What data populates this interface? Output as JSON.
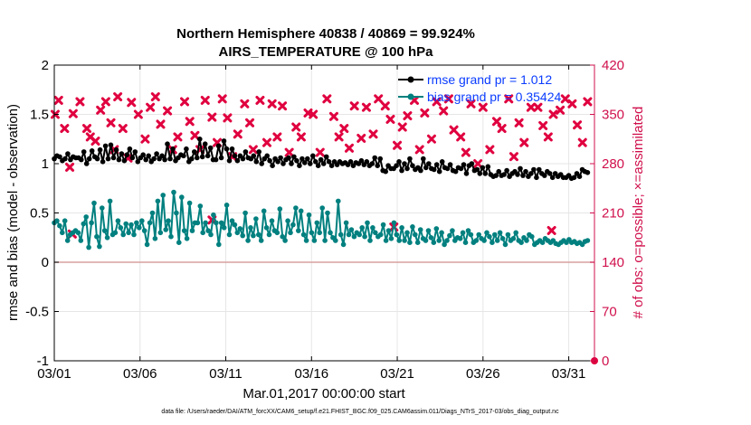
{
  "chart_data": {
    "type": "line",
    "title_line1": "Northern Hemisphere 40838 / 40869 = 99.924%",
    "title_line2": "AIRS_TEMPERATURE @ 100 hPa",
    "xlabel": "Mar.01,2017 00:00:00 start",
    "ylabel": "rmse and bias (model - observation)",
    "ylabel_right": "# of obs: o=possible; ×=assimilated",
    "xlim": [
      0,
      31.5
    ],
    "ylim": [
      -1,
      2
    ],
    "ylim_right": [
      0,
      420
    ],
    "x_ticks": [
      0,
      5,
      10,
      15,
      20,
      25,
      30
    ],
    "x_tick_labels": [
      "03/01",
      "03/06",
      "03/11",
      "03/16",
      "03/21",
      "03/26",
      "03/31"
    ],
    "y_ticks": [
      -1,
      -0.5,
      0,
      0.5,
      1,
      1.5,
      2
    ],
    "y_tick_labels": [
      "-1",
      "-0.5",
      "0",
      "0.5",
      "1",
      "1.5",
      "2"
    ],
    "y_right_ticks": [
      0,
      70,
      140,
      210,
      280,
      350,
      420
    ],
    "y_right_tick_labels": [
      "0",
      "70",
      "140",
      "210",
      "280",
      "350",
      "420"
    ],
    "legend_position": "top-right",
    "footer": "data file: /Users/raeder/DAI/ATM_forcXX/CAM6_setup/f.e21.FHIST_BGC.f09_025.CAM6assim.011/Diags_NTrS_2017-03/obs_diag_output.nc",
    "series": [
      {
        "name": "rmse grand pr = 1.012",
        "color": "#000000",
        "values": [
          1.05,
          1.08,
          1.07,
          1.03,
          1.05,
          1.1,
          1.04,
          1.07,
          1.06,
          1.06,
          1.04,
          1.12,
          1.0,
          1.05,
          1.13,
          1.07,
          1.05,
          1.14,
          1.02,
          1.18,
          1.05,
          1.19,
          1.06,
          1.14,
          1.04,
          1.1,
          1.03,
          1.09,
          1.15,
          1.06,
          1.12,
          1.02,
          1.06,
          1.09,
          1.04,
          1.08,
          1.02,
          1.05,
          1.1,
          1.05,
          1.08,
          1.04,
          1.2,
          1.05,
          1.15,
          1.03,
          1.06,
          1.09,
          1.08,
          1.15,
          1.02,
          1.05,
          1.12,
          1.06,
          1.25,
          1.07,
          1.2,
          1.08,
          1.16,
          1.04,
          1.04,
          1.18,
          1.06,
          1.23,
          1.15,
          1.03,
          1.15,
          1.08,
          1.03,
          1.08,
          1.05,
          1.12,
          1.06,
          1.05,
          1.08,
          1.02,
          1.12,
          1.0,
          1.05,
          1.08,
          1.03,
          0.98,
          1.05,
          1.02,
          1.06,
          1.0,
          1.04,
          1.06,
          1.0,
          1.07,
          1.03,
          0.98,
          1.05,
          1.01,
          1.05,
          1.0,
          1.08,
          1.02,
          0.98,
          1.04,
          1.0,
          1.07,
          1.02,
          0.98,
          1.02,
          0.99,
          1.02,
          1.0,
          1.01,
          0.99,
          1.02,
          0.98,
          1.01,
          1.0,
          1.03,
          0.99,
          1.02,
          0.98,
          1.0,
          1.06,
          0.98,
          1.05,
          0.93,
          0.92,
          0.98,
          0.95,
          0.95,
          0.98,
          1.02,
          0.93,
          1.0,
          0.95,
          1.05,
          0.98,
          0.94,
          0.96,
          0.93,
          1.05,
          0.96,
          1.0,
          0.95,
          0.94,
          0.99,
          0.92,
          1.02,
          0.96,
          0.95,
          0.99,
          0.93,
          0.92,
          0.96,
          0.95,
          0.99,
          0.9,
          0.98,
          1.0,
          0.93,
          0.94,
          0.9,
          0.96,
          0.9,
          0.97,
          0.89,
          0.87,
          0.88,
          0.92,
          0.88,
          0.89,
          0.93,
          0.87,
          0.9,
          0.92,
          0.89,
          0.95,
          0.88,
          0.92,
          0.87,
          0.9,
          0.94,
          0.86,
          0.94,
          0.9,
          0.88,
          0.92,
          0.9,
          0.86,
          0.9,
          0.87,
          0.89,
          0.86,
          0.86,
          0.88,
          0.85,
          0.86,
          0.9,
          0.87,
          0.94,
          0.92,
          0.91
        ]
      },
      {
        "name": "bias grand pr = 0.35424",
        "color": "#00807f",
        "values": [
          0.4,
          0.42,
          0.37,
          0.3,
          0.42,
          0.22,
          0.28,
          0.3,
          0.32,
          0.3,
          0.22,
          0.39,
          0.46,
          0.15,
          0.4,
          0.6,
          0.26,
          0.16,
          0.55,
          0.32,
          0.25,
          0.62,
          0.28,
          0.3,
          0.42,
          0.35,
          0.28,
          0.39,
          0.3,
          0.38,
          0.28,
          0.4,
          0.35,
          0.42,
          0.32,
          0.18,
          0.4,
          0.5,
          0.24,
          0.62,
          0.3,
          0.68,
          0.33,
          0.42,
          0.26,
          0.71,
          0.5,
          0.2,
          0.66,
          0.32,
          0.24,
          0.6,
          0.32,
          0.4,
          0.4,
          0.57,
          0.3,
          0.4,
          0.32,
          0.28,
          0.48,
          0.4,
          0.18,
          0.4,
          0.35,
          0.58,
          0.28,
          0.42,
          0.38,
          0.3,
          0.34,
          0.27,
          0.5,
          0.22,
          0.35,
          0.27,
          0.44,
          0.28,
          0.22,
          0.52,
          0.35,
          0.28,
          0.42,
          0.32,
          0.3,
          0.54,
          0.26,
          0.22,
          0.42,
          0.3,
          0.38,
          0.55,
          0.32,
          0.52,
          0.28,
          0.22,
          0.48,
          0.3,
          0.22,
          0.4,
          0.3,
          0.55,
          0.22,
          0.5,
          0.3,
          0.25,
          0.22,
          0.62,
          0.28,
          0.18,
          0.4,
          0.28,
          0.33,
          0.26,
          0.3,
          0.28,
          0.35,
          0.26,
          0.4,
          0.22,
          0.35,
          0.3,
          0.26,
          0.28,
          0.38,
          0.22,
          0.32,
          0.24,
          0.4,
          0.28,
          0.22,
          0.35,
          0.22,
          0.3,
          0.2,
          0.36,
          0.28,
          0.2,
          0.33,
          0.24,
          0.22,
          0.32,
          0.25,
          0.2,
          0.34,
          0.22,
          0.3,
          0.18,
          0.22,
          0.27,
          0.32,
          0.22,
          0.25,
          0.24,
          0.3,
          0.2,
          0.32,
          0.28,
          0.2,
          0.22,
          0.28,
          0.24,
          0.22,
          0.3,
          0.26,
          0.2,
          0.28,
          0.22,
          0.3,
          0.24,
          0.18,
          0.28,
          0.22,
          0.24,
          0.3,
          0.22,
          0.2,
          0.25,
          0.22,
          0.28,
          0.26,
          0.18,
          0.2,
          0.22,
          0.2,
          0.24,
          0.22,
          0.2,
          0.22,
          0.19,
          0.18,
          0.2,
          0.22,
          0.2,
          0.23,
          0.2,
          0.21,
          0.19,
          0.2,
          0.18,
          0.21,
          0.22
        ]
      }
    ],
    "obs_possible_color": "#e0003f",
    "obs_assimilated": [
      {
        "x": 0.05,
        "y": 350
      },
      {
        "x": 0.25,
        "y": 370
      },
      {
        "x": 0.6,
        "y": 330
      },
      {
        "x": 0.9,
        "y": 275
      },
      {
        "x": 1.1,
        "y": 351
      },
      {
        "x": 1.5,
        "y": 368
      },
      {
        "x": 1.9,
        "y": 330
      },
      {
        "x": 2.1,
        "y": 318
      },
      {
        "x": 2.4,
        "y": 312
      },
      {
        "x": 2.7,
        "y": 356
      },
      {
        "x": 3.0,
        "y": 368
      },
      {
        "x": 3.3,
        "y": 338
      },
      {
        "x": 3.5,
        "y": 300
      },
      {
        "x": 3.7,
        "y": 375
      },
      {
        "x": 4.0,
        "y": 330
      },
      {
        "x": 4.3,
        "y": 288
      },
      {
        "x": 4.5,
        "y": 367
      },
      {
        "x": 4.9,
        "y": 350
      },
      {
        "x": 5.3,
        "y": 315
      },
      {
        "x": 5.6,
        "y": 360
      },
      {
        "x": 5.9,
        "y": 375
      },
      {
        "x": 6.2,
        "y": 336
      },
      {
        "x": 6.6,
        "y": 355
      },
      {
        "x": 6.9,
        "y": 300
      },
      {
        "x": 7.2,
        "y": 318
      },
      {
        "x": 7.6,
        "y": 368
      },
      {
        "x": 7.9,
        "y": 340
      },
      {
        "x": 8.2,
        "y": 320
      },
      {
        "x": 8.5,
        "y": 300
      },
      {
        "x": 8.8,
        "y": 370
      },
      {
        "x": 9.2,
        "y": 346
      },
      {
        "x": 9.5,
        "y": 310
      },
      {
        "x": 9.8,
        "y": 372
      },
      {
        "x": 10.1,
        "y": 345
      },
      {
        "x": 10.4,
        "y": 290
      },
      {
        "x": 10.7,
        "y": 322
      },
      {
        "x": 11.1,
        "y": 365
      },
      {
        "x": 11.4,
        "y": 338
      },
      {
        "x": 11.6,
        "y": 300
      },
      {
        "x": 12.0,
        "y": 370
      },
      {
        "x": 12.4,
        "y": 310
      },
      {
        "x": 12.7,
        "y": 365
      },
      {
        "x": 13.0,
        "y": 318
      },
      {
        "x": 13.3,
        "y": 362
      },
      {
        "x": 13.7,
        "y": 296
      },
      {
        "x": 14.1,
        "y": 332
      },
      {
        "x": 14.4,
        "y": 318
      },
      {
        "x": 14.8,
        "y": 352
      },
      {
        "x": 15.1,
        "y": 350
      },
      {
        "x": 15.5,
        "y": 296
      },
      {
        "x": 15.9,
        "y": 372
      },
      {
        "x": 16.3,
        "y": 347
      },
      {
        "x": 16.6,
        "y": 318
      },
      {
        "x": 16.9,
        "y": 330
      },
      {
        "x": 17.2,
        "y": 302
      },
      {
        "x": 17.5,
        "y": 362
      },
      {
        "x": 17.9,
        "y": 316
      },
      {
        "x": 18.2,
        "y": 360
      },
      {
        "x": 18.6,
        "y": 322
      },
      {
        "x": 18.9,
        "y": 372
      },
      {
        "x": 19.3,
        "y": 362
      },
      {
        "x": 19.6,
        "y": 343
      },
      {
        "x": 20.0,
        "y": 306
      },
      {
        "x": 20.3,
        "y": 332
      },
      {
        "x": 20.6,
        "y": 348
      },
      {
        "x": 21.0,
        "y": 370
      },
      {
        "x": 21.3,
        "y": 300
      },
      {
        "x": 21.6,
        "y": 352
      },
      {
        "x": 22.0,
        "y": 315
      },
      {
        "x": 22.3,
        "y": 368
      },
      {
        "x": 22.7,
        "y": 355
      },
      {
        "x": 23.0,
        "y": 372
      },
      {
        "x": 23.3,
        "y": 328
      },
      {
        "x": 23.7,
        "y": 318
      },
      {
        "x": 24.0,
        "y": 296
      },
      {
        "x": 24.3,
        "y": 365
      },
      {
        "x": 24.7,
        "y": 280
      },
      {
        "x": 25.0,
        "y": 360
      },
      {
        "x": 25.4,
        "y": 300
      },
      {
        "x": 25.8,
        "y": 340
      },
      {
        "x": 26.1,
        "y": 330
      },
      {
        "x": 26.5,
        "y": 372
      },
      {
        "x": 26.8,
        "y": 290
      },
      {
        "x": 27.1,
        "y": 338
      },
      {
        "x": 27.4,
        "y": 310
      },
      {
        "x": 27.8,
        "y": 360
      },
      {
        "x": 28.2,
        "y": 360
      },
      {
        "x": 28.5,
        "y": 334
      },
      {
        "x": 28.8,
        "y": 318
      },
      {
        "x": 29.1,
        "y": 350
      },
      {
        "x": 29.5,
        "y": 356
      },
      {
        "x": 29.8,
        "y": 372
      },
      {
        "x": 30.2,
        "y": 365
      },
      {
        "x": 30.5,
        "y": 335
      },
      {
        "x": 30.8,
        "y": 310
      },
      {
        "x": 31.1,
        "y": 368
      },
      {
        "x": 1.05,
        "y": 180
      },
      {
        "x": 9.2,
        "y": 200
      },
      {
        "x": 29.0,
        "y": 185
      },
      {
        "x": 19.8,
        "y": 190
      }
    ]
  }
}
